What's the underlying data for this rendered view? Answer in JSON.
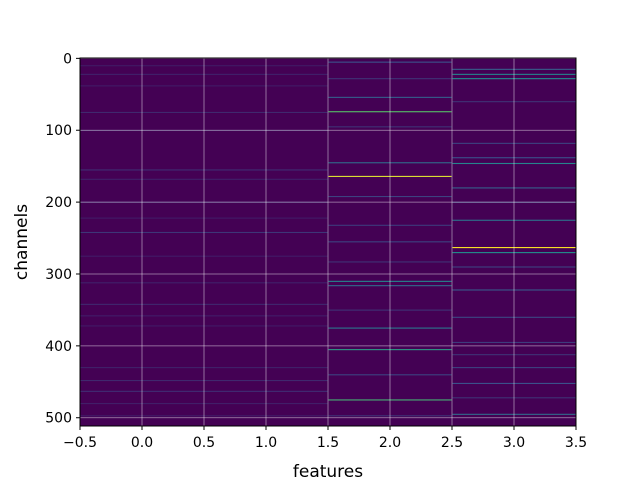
{
  "chart_data": {
    "type": "heatmap",
    "title": "",
    "xlabel": "features",
    "ylabel": "channels",
    "xlim": [
      -0.5,
      3.5
    ],
    "ylim": [
      511.5,
      -0.5
    ],
    "y_inverted": true,
    "grid": true,
    "colormap": "viridis",
    "n_rows": 512,
    "columns": [
      0,
      1,
      2,
      3
    ],
    "column_edges_visible": [
      1.5,
      2.5
    ],
    "xticks": [
      "−0.5",
      "0.0",
      "0.5",
      "1.0",
      "1.5",
      "2.0",
      "2.5",
      "3.0",
      "3.5"
    ],
    "xtick_values": [
      -0.5,
      0.0,
      0.5,
      1.0,
      1.5,
      2.0,
      2.5,
      3.0,
      3.5
    ],
    "yticks": [
      "0",
      "100",
      "200",
      "300",
      "400",
      "500"
    ],
    "ytick_values": [
      0,
      100,
      200,
      300,
      400,
      500
    ],
    "highlights": [
      {
        "cols": [
          0,
          1
        ],
        "row": 10,
        "value": 0.08
      },
      {
        "cols": [
          0,
          1
        ],
        "row": 22,
        "value": 0.1
      },
      {
        "cols": [
          0,
          1
        ],
        "row": 38,
        "value": 0.08
      },
      {
        "cols": [
          0,
          1
        ],
        "row": 75,
        "value": 0.12
      },
      {
        "cols": [
          0,
          1
        ],
        "row": 100,
        "value": 0.08
      },
      {
        "cols": [
          0,
          1
        ],
        "row": 155,
        "value": 0.14
      },
      {
        "cols": [
          0,
          1
        ],
        "row": 168,
        "value": 0.1
      },
      {
        "cols": [
          0,
          1
        ],
        "row": 200,
        "value": 0.1
      },
      {
        "cols": [
          0,
          1
        ],
        "row": 222,
        "value": 0.08
      },
      {
        "cols": [
          0,
          1
        ],
        "row": 242,
        "value": 0.16
      },
      {
        "cols": [
          0,
          1
        ],
        "row": 275,
        "value": 0.08
      },
      {
        "cols": [
          0,
          1
        ],
        "row": 312,
        "value": 0.1
      },
      {
        "cols": [
          0,
          1
        ],
        "row": 342,
        "value": 0.12
      },
      {
        "cols": [
          0,
          1
        ],
        "row": 358,
        "value": 0.09
      },
      {
        "cols": [
          0,
          1
        ],
        "row": 372,
        "value": 0.08
      },
      {
        "cols": [
          0,
          1
        ],
        "row": 430,
        "value": 0.1
      },
      {
        "cols": [
          0,
          1
        ],
        "row": 448,
        "value": 0.12
      },
      {
        "cols": [
          0,
          1
        ],
        "row": 463,
        "value": 0.14
      },
      {
        "cols": [
          0,
          1
        ],
        "row": 480,
        "value": 0.09
      },
      {
        "cols": [
          0,
          1
        ],
        "row": 497,
        "value": 0.08
      },
      {
        "cols": [
          2
        ],
        "row": 5,
        "value": 0.25
      },
      {
        "cols": [
          2
        ],
        "row": 28,
        "value": 0.15
      },
      {
        "cols": [
          2
        ],
        "row": 54,
        "value": 0.3
      },
      {
        "cols": [
          2
        ],
        "row": 74,
        "value": 0.72
      },
      {
        "cols": [
          2
        ],
        "row": 95,
        "value": 0.15
      },
      {
        "cols": [
          2
        ],
        "row": 145,
        "value": 0.35
      },
      {
        "cols": [
          2
        ],
        "row": 164,
        "value": 0.95
      },
      {
        "cols": [
          2
        ],
        "row": 192,
        "value": 0.2
      },
      {
        "cols": [
          2
        ],
        "row": 232,
        "value": 0.18
      },
      {
        "cols": [
          2
        ],
        "row": 255,
        "value": 0.2
      },
      {
        "cols": [
          2
        ],
        "row": 283,
        "value": 0.15
      },
      {
        "cols": [
          2
        ],
        "row": 310,
        "value": 0.45
      },
      {
        "cols": [
          2
        ],
        "row": 316,
        "value": 0.35
      },
      {
        "cols": [
          2
        ],
        "row": 350,
        "value": 0.15
      },
      {
        "cols": [
          2
        ],
        "row": 375,
        "value": 0.4
      },
      {
        "cols": [
          2
        ],
        "row": 405,
        "value": 0.55
      },
      {
        "cols": [
          2
        ],
        "row": 440,
        "value": 0.2
      },
      {
        "cols": [
          2
        ],
        "row": 475,
        "value": 0.65
      },
      {
        "cols": [
          2
        ],
        "row": 497,
        "value": 0.15
      },
      {
        "cols": [
          3
        ],
        "row": 15,
        "value": 0.3
      },
      {
        "cols": [
          3
        ],
        "row": 22,
        "value": 0.45
      },
      {
        "cols": [
          3
        ],
        "row": 28,
        "value": 0.5
      },
      {
        "cols": [
          3
        ],
        "row": 60,
        "value": 0.15
      },
      {
        "cols": [
          3
        ],
        "row": 118,
        "value": 0.2
      },
      {
        "cols": [
          3
        ],
        "row": 138,
        "value": 0.25
      },
      {
        "cols": [
          3
        ],
        "row": 146,
        "value": 0.45
      },
      {
        "cols": [
          3
        ],
        "row": 180,
        "value": 0.3
      },
      {
        "cols": [
          3
        ],
        "row": 200,
        "value": 0.18
      },
      {
        "cols": [
          3
        ],
        "row": 225,
        "value": 0.38
      },
      {
        "cols": [
          3
        ],
        "row": 263,
        "value": 1.0
      },
      {
        "cols": [
          3
        ],
        "row": 270,
        "value": 0.5
      },
      {
        "cols": [
          3
        ],
        "row": 290,
        "value": 0.2
      },
      {
        "cols": [
          3
        ],
        "row": 322,
        "value": 0.28
      },
      {
        "cols": [
          3
        ],
        "row": 360,
        "value": 0.22
      },
      {
        "cols": [
          3
        ],
        "row": 395,
        "value": 0.18
      },
      {
        "cols": [
          3
        ],
        "row": 412,
        "value": 0.15
      },
      {
        "cols": [
          3
        ],
        "row": 430,
        "value": 0.2
      },
      {
        "cols": [
          3
        ],
        "row": 452,
        "value": 0.25
      },
      {
        "cols": [
          3
        ],
        "row": 472,
        "value": 0.15
      },
      {
        "cols": [
          3
        ],
        "row": 495,
        "value": 0.35
      }
    ]
  }
}
